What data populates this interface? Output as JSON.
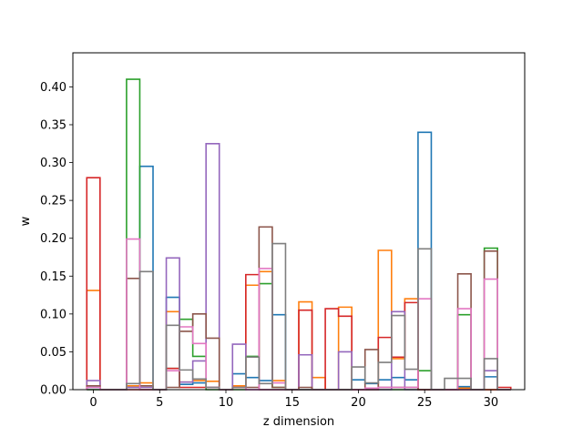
{
  "chart_data": {
    "type": "bar",
    "style": "step histogram (unfilled outlines), one outline per series, bins of width 1 centered on integer z",
    "title": "",
    "xlabel": "z dimension",
    "ylabel": "w",
    "xlim": [
      -1.55,
      32.55
    ],
    "ylim": [
      0,
      0.445
    ],
    "xticks": [
      0,
      5,
      10,
      15,
      20,
      25,
      30
    ],
    "yticks": [
      0.0,
      0.05,
      0.1,
      0.15,
      0.2,
      0.25,
      0.3,
      0.35,
      0.4
    ],
    "ytick_labels": [
      "0.00",
      "0.05",
      "0.10",
      "0.15",
      "0.20",
      "0.25",
      "0.30",
      "0.35",
      "0.40"
    ],
    "grid": false,
    "legend": "none",
    "x": [
      0,
      1,
      2,
      3,
      4,
      5,
      6,
      7,
      8,
      9,
      10,
      11,
      12,
      13,
      14,
      15,
      16,
      17,
      18,
      19,
      20,
      21,
      22,
      23,
      24,
      25,
      26,
      27,
      28,
      29,
      30,
      31
    ],
    "series": [
      {
        "color": "#1f77b4",
        "values": [
          0.003,
          0,
          0,
          0.003,
          0.295,
          0,
          0.122,
          0.007,
          0.009,
          0.003,
          0,
          0.021,
          0.016,
          0.012,
          0.099,
          0,
          0,
          0,
          0,
          0,
          0.013,
          0.008,
          0.013,
          0.016,
          0.013,
          0.34,
          0,
          0,
          0.004,
          0,
          0.017,
          0
        ]
      },
      {
        "color": "#ff7f0e",
        "values": [
          0.131,
          0,
          0,
          0.005,
          0.009,
          0,
          0.103,
          0.01,
          0.012,
          0.011,
          0,
          0.005,
          0.138,
          0.156,
          0.012,
          0,
          0.116,
          0.016,
          0,
          0.109,
          0,
          0,
          0.184,
          0.041,
          0.12,
          0,
          0,
          0,
          0.002,
          0,
          0,
          0
        ]
      },
      {
        "color": "#2ca02c",
        "values": [
          0,
          0,
          0,
          0.41,
          0,
          0,
          0.028,
          0.093,
          0.044,
          0,
          0,
          0,
          0.044,
          0.14,
          0.003,
          0,
          0,
          0,
          0,
          0,
          0,
          0,
          0,
          0,
          0,
          0.025,
          0,
          0,
          0.099,
          0,
          0.187,
          0
        ]
      },
      {
        "color": "#d62728",
        "values": [
          0.28,
          0,
          0,
          0,
          0,
          0,
          0.028,
          0.003,
          0.003,
          0.003,
          0,
          0.003,
          0.152,
          0,
          0,
          0,
          0.105,
          0,
          0.107,
          0.097,
          0,
          0,
          0.069,
          0.043,
          0.115,
          0,
          0,
          0,
          0,
          0,
          0,
          0.003
        ]
      },
      {
        "color": "#9467bd",
        "values": [
          0.012,
          0,
          0,
          0.003,
          0.003,
          0,
          0.174,
          0.01,
          0.038,
          0.325,
          0,
          0.06,
          0,
          0,
          0,
          0,
          0.046,
          0,
          0,
          0.05,
          0,
          0,
          0,
          0.103,
          0,
          0,
          0,
          0,
          0,
          0,
          0.025,
          0
        ]
      },
      {
        "color": "#8c564b",
        "values": [
          0.005,
          0,
          0,
          0.147,
          0.005,
          0,
          0.003,
          0.077,
          0.1,
          0.068,
          0,
          0.003,
          0.003,
          0.215,
          0.003,
          0,
          0.003,
          0,
          0,
          0,
          0,
          0.053,
          0.003,
          0.003,
          0.003,
          0,
          0,
          0,
          0.153,
          0,
          0.183,
          0
        ]
      },
      {
        "color": "#e377c2",
        "values": [
          0.003,
          0,
          0,
          0.199,
          0,
          0,
          0.025,
          0.083,
          0.061,
          0.003,
          0,
          0.003,
          0,
          0.16,
          0.009,
          0,
          0,
          0,
          0,
          0,
          0,
          0.002,
          0.003,
          0.003,
          0.003,
          0.12,
          0,
          0,
          0.107,
          0,
          0.146,
          0
        ]
      },
      {
        "color": "#7f7f7f",
        "values": [
          0,
          0,
          0,
          0.008,
          0.156,
          0,
          0.085,
          0.026,
          0.014,
          0.003,
          0,
          0.003,
          0.043,
          0.008,
          0.193,
          0,
          0,
          0,
          0,
          0,
          0.03,
          0.009,
          0.036,
          0.098,
          0.027,
          0.186,
          0,
          0.015,
          0.015,
          0,
          0.041,
          0
        ]
      }
    ]
  }
}
